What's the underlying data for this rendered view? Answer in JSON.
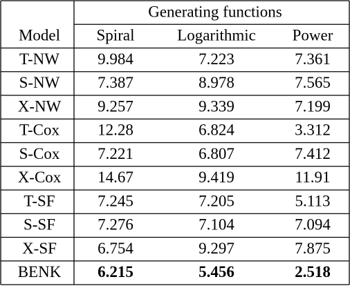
{
  "table": {
    "group_header": "Generating functions",
    "columns": [
      "Model",
      "Spiral",
      "Logarithmic",
      "Power"
    ],
    "rows": [
      [
        "T-NW",
        "9.984",
        "7.223",
        "7.361"
      ],
      [
        "S-NW",
        "7.387",
        "8.978",
        "7.565"
      ],
      [
        "X-NW",
        "9.257",
        "9.339",
        "7.199"
      ],
      [
        "T-Cox",
        "12.28",
        "6.824",
        "3.312"
      ],
      [
        "S-Cox",
        "7.221",
        "6.807",
        "7.412"
      ],
      [
        "X-Cox",
        "14.67",
        "9.419",
        "11.91"
      ],
      [
        "T-SF",
        "7.245",
        "7.205",
        "5.113"
      ],
      [
        "S-SF",
        "7.276",
        "7.104",
        "7.094"
      ],
      [
        "X-SF",
        "6.754",
        "9.297",
        "7.875"
      ],
      [
        "BENK",
        "6.215",
        "5.456",
        "2.518"
      ]
    ]
  }
}
